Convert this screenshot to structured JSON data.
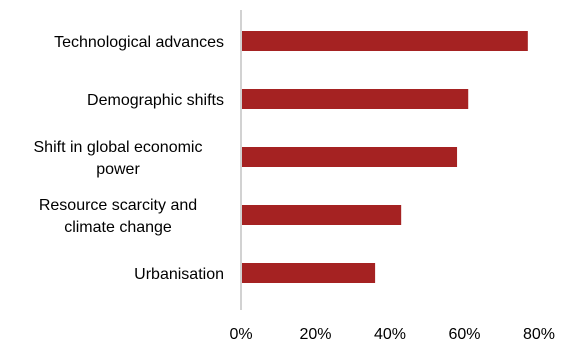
{
  "chart_data": {
    "type": "bar",
    "orientation": "horizontal",
    "categories": [
      "Technological advances",
      "Demographic shifts",
      "Shift in global economic power",
      "Resource scarcity and climate change",
      "Urbanisation"
    ],
    "category_lines": [
      [
        "Technological advances"
      ],
      [
        "Demographic shifts"
      ],
      [
        "Shift in global economic",
        "power"
      ],
      [
        "Resource scarcity and",
        "climate change"
      ],
      [
        "Urbanisation"
      ]
    ],
    "values": [
      0.77,
      0.61,
      0.58,
      0.43,
      0.36
    ],
    "xlim": [
      0,
      0.8
    ],
    "x_ticks": [
      0,
      0.2,
      0.4,
      0.6,
      0.8
    ],
    "x_tick_labels": [
      "0%",
      "20%",
      "40%",
      "60%",
      "80%"
    ],
    "title": "",
    "xlabel": "",
    "ylabel": "",
    "grid": false,
    "bar_color": "#A52222",
    "axis_color": "#A6A6A6"
  }
}
